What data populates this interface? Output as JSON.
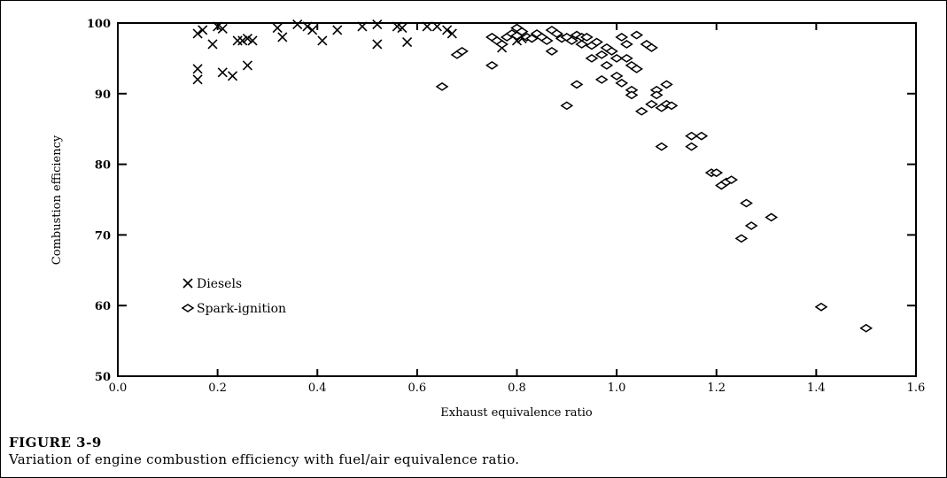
{
  "figure": {
    "label": "FIGURE 3-9",
    "caption": "Variation of engine combustion efficiency with fuel/air equivalence ratio."
  },
  "chart_data": {
    "type": "scatter",
    "xlabel": "Exhaust equivalence ratio",
    "ylabel": "Combustion efficiency",
    "xlim": [
      0.0,
      1.6
    ],
    "ylim": [
      50,
      100
    ],
    "x_ticks": [
      "0.0",
      "0.2",
      "0.4",
      "0.6",
      "0.8",
      "1.0",
      "1.2",
      "1.4",
      "1.6"
    ],
    "y_ticks": [
      "50",
      "60",
      "70",
      "80",
      "90",
      "100"
    ],
    "grid": false,
    "legend_position": "lower-left",
    "series": [
      {
        "name": "Diesels",
        "marker": "x",
        "points": [
          [
            0.16,
            98.5
          ],
          [
            0.17,
            99.0
          ],
          [
            0.16,
            93.5
          ],
          [
            0.16,
            92.0
          ],
          [
            0.19,
            97.0
          ],
          [
            0.2,
            99.5
          ],
          [
            0.21,
            99.2
          ],
          [
            0.21,
            93.0
          ],
          [
            0.23,
            92.5
          ],
          [
            0.24,
            97.5
          ],
          [
            0.25,
            97.5
          ],
          [
            0.26,
            97.8
          ],
          [
            0.26,
            94.0
          ],
          [
            0.27,
            97.5
          ],
          [
            0.32,
            99.3
          ],
          [
            0.33,
            98.0
          ],
          [
            0.36,
            99.8
          ],
          [
            0.38,
            99.5
          ],
          [
            0.39,
            99.0
          ],
          [
            0.41,
            97.5
          ],
          [
            0.44,
            99.0
          ],
          [
            0.49,
            99.5
          ],
          [
            0.52,
            99.8
          ],
          [
            0.52,
            97.0
          ],
          [
            0.56,
            99.5
          ],
          [
            0.57,
            99.3
          ],
          [
            0.58,
            97.3
          ],
          [
            0.62,
            99.5
          ],
          [
            0.64,
            99.5
          ],
          [
            0.66,
            99.0
          ],
          [
            0.67,
            98.5
          ],
          [
            0.77,
            96.5
          ],
          [
            0.8,
            97.5
          ],
          [
            0.81,
            97.8
          ]
        ]
      },
      {
        "name": "Spark-ignition",
        "marker": "diamond",
        "points": [
          [
            0.65,
            91.0
          ],
          [
            0.68,
            95.5
          ],
          [
            0.69,
            96.0
          ],
          [
            0.75,
            98.0
          ],
          [
            0.75,
            94.0
          ],
          [
            0.76,
            97.5
          ],
          [
            0.77,
            97.0
          ],
          [
            0.78,
            98.0
          ],
          [
            0.79,
            98.5
          ],
          [
            0.8,
            99.3
          ],
          [
            0.8,
            98.2
          ],
          [
            0.81,
            98.8
          ],
          [
            0.82,
            98.0
          ],
          [
            0.83,
            97.8
          ],
          [
            0.84,
            98.5
          ],
          [
            0.85,
            98.0
          ],
          [
            0.86,
            97.5
          ],
          [
            0.87,
            99.0
          ],
          [
            0.87,
            96.0
          ],
          [
            0.88,
            98.5
          ],
          [
            0.89,
            97.8
          ],
          [
            0.9,
            98.0
          ],
          [
            0.9,
            88.3
          ],
          [
            0.91,
            97.5
          ],
          [
            0.92,
            98.3
          ],
          [
            0.92,
            91.3
          ],
          [
            0.93,
            98.0
          ],
          [
            0.93,
            97.0
          ],
          [
            0.94,
            98.0
          ],
          [
            0.95,
            95.0
          ],
          [
            0.95,
            96.8
          ],
          [
            0.96,
            97.3
          ],
          [
            0.97,
            92.0
          ],
          [
            0.97,
            95.5
          ],
          [
            0.98,
            96.5
          ],
          [
            0.98,
            94.0
          ],
          [
            0.99,
            96.0
          ],
          [
            1.0,
            95.0
          ],
          [
            1.0,
            92.5
          ],
          [
            1.01,
            98.0
          ],
          [
            1.01,
            91.5
          ],
          [
            1.02,
            97.0
          ],
          [
            1.02,
            95.0
          ],
          [
            1.03,
            94.0
          ],
          [
            1.03,
            90.5
          ],
          [
            1.03,
            89.8
          ],
          [
            1.04,
            98.3
          ],
          [
            1.04,
            93.5
          ],
          [
            1.05,
            87.5
          ],
          [
            1.06,
            97.0
          ],
          [
            1.07,
            88.5
          ],
          [
            1.07,
            96.5
          ],
          [
            1.08,
            90.5
          ],
          [
            1.08,
            89.8
          ],
          [
            1.09,
            88.0
          ],
          [
            1.09,
            82.5
          ],
          [
            1.1,
            91.3
          ],
          [
            1.1,
            88.5
          ],
          [
            1.11,
            88.3
          ],
          [
            1.15,
            84.0
          ],
          [
            1.15,
            82.5
          ],
          [
            1.17,
            84.0
          ],
          [
            1.19,
            78.8
          ],
          [
            1.2,
            78.8
          ],
          [
            1.21,
            77.0
          ],
          [
            1.22,
            77.5
          ],
          [
            1.23,
            77.8
          ],
          [
            1.25,
            69.5
          ],
          [
            1.26,
            74.5
          ],
          [
            1.27,
            71.3
          ],
          [
            1.31,
            72.5
          ],
          [
            1.41,
            59.8
          ],
          [
            1.5,
            56.8
          ]
        ]
      }
    ]
  }
}
